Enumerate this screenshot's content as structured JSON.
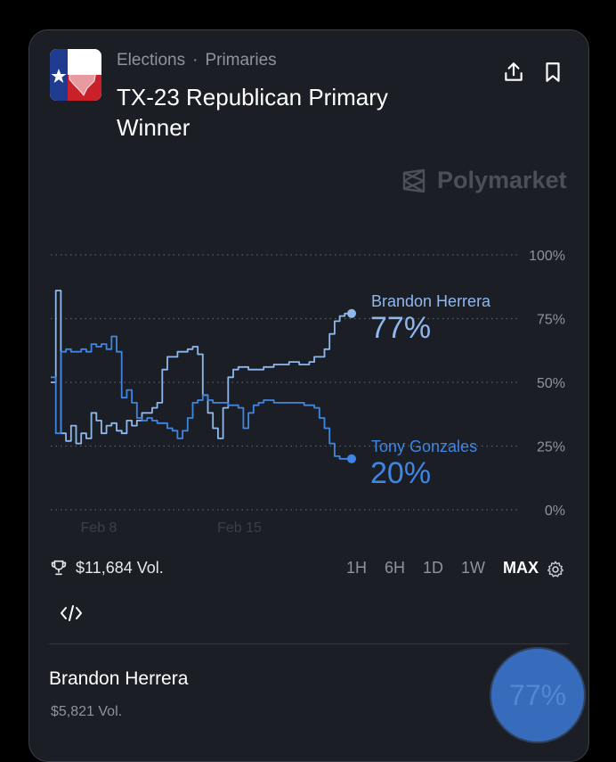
{
  "header": {
    "breadcrumb": [
      "Elections",
      "Primaries"
    ],
    "breadcrumb_separator": "·",
    "title": "TX-23 Republican Primary Winner",
    "icons": [
      "texas-flag-icon",
      "share-icon",
      "bookmark-icon"
    ]
  },
  "brand": {
    "name": "Polymarket"
  },
  "chart_data": {
    "type": "line",
    "x_ticks": [
      "Feb 8",
      "Feb 15"
    ],
    "y_ticks": [
      "100%",
      "75%",
      "50%",
      "25%",
      "0%"
    ],
    "ylim": [
      0,
      100
    ],
    "grid": true,
    "series": [
      {
        "name": "Brandon Herrera",
        "label_value": "77%",
        "color": "#8fb8ef",
        "values": [
          50,
          86,
          30,
          27,
          33,
          26,
          30,
          28,
          38,
          35,
          30,
          33,
          34,
          31,
          30,
          35,
          33,
          35,
          38,
          38,
          40,
          42,
          55,
          60,
          60,
          62,
          62,
          63,
          64,
          61,
          45,
          38,
          32,
          28,
          40,
          52,
          55,
          56,
          56,
          55,
          55,
          55,
          56,
          56,
          57,
          57,
          57,
          58,
          58,
          57,
          57,
          58,
          60,
          60,
          63,
          69,
          74,
          76,
          77,
          77
        ]
      },
      {
        "name": "Tony Gonzales",
        "label_value": "20%",
        "color": "#3f86e3",
        "values": [
          52,
          30,
          62,
          63,
          62,
          62,
          63,
          62,
          65,
          64,
          65,
          63,
          68,
          62,
          44,
          47,
          42,
          36,
          35,
          36,
          35,
          34,
          34,
          32,
          31,
          28,
          31,
          36,
          42,
          43,
          45,
          43,
          42,
          42,
          42,
          41,
          41,
          40,
          32,
          38,
          41,
          42,
          43,
          43,
          42,
          42,
          42,
          42,
          42,
          42,
          41,
          41,
          40,
          36,
          32,
          26,
          21,
          20,
          20,
          20
        ]
      }
    ]
  },
  "stats": {
    "volume": "$11,684 Vol."
  },
  "time_ranges": [
    "1H",
    "6H",
    "1D",
    "1W",
    "MAX"
  ],
  "active_range": "MAX",
  "candidate": {
    "name": "Brandon Herrera",
    "volume": "$5,821 Vol.",
    "percent": "77%"
  }
}
